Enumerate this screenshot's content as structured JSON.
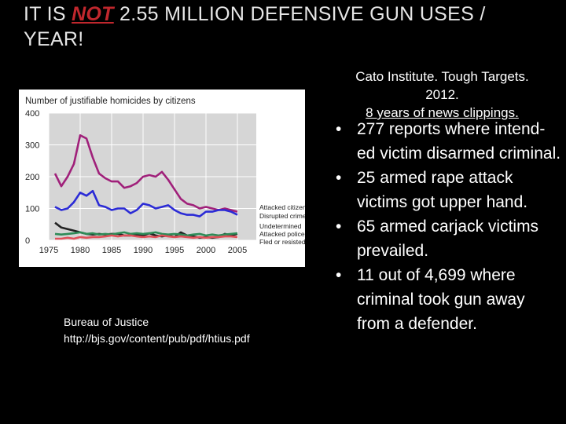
{
  "title": {
    "prefix": "IT IS ",
    "emphasis": "NOT",
    "suffix": " 2.55 MILLION DEFENSIVE GUN USES / YEAR!"
  },
  "left_source": {
    "line1": "Bureau of Justice",
    "line2": "http://bjs.gov/content/pub/pdf/htius.pdf"
  },
  "right_source": {
    "line1": "Cato Institute. Tough Targets.",
    "line2": "2012.",
    "line3": "8 years of news clippings."
  },
  "bullets": [
    {
      "symbol": "•",
      "text": "277 reports where intend-ed victim disarmed criminal."
    },
    {
      "symbol": "•",
      "text": "25 armed rape attack victims got upper hand."
    },
    {
      "symbol": "•",
      "text": "65 armed carjack victims prevailed."
    },
    {
      "symbol": "•",
      "text": "11 out of 4,699 where criminal took gun away from a defender."
    }
  ],
  "chart_data": {
    "type": "line",
    "title": "Number of justifiable homicides by citizens",
    "xlabel": "",
    "ylabel": "",
    "xlim": [
      1975,
      2008
    ],
    "ylim": [
      0,
      400
    ],
    "x_ticks": [
      1975,
      1980,
      1985,
      1990,
      1995,
      2000,
      2005
    ],
    "y_ticks": [
      0,
      100,
      200,
      300,
      400
    ],
    "grid": true,
    "legend": "right, labels beside line ends",
    "x": [
      1976,
      1977,
      1978,
      1979,
      1980,
      1981,
      1982,
      1983,
      1984,
      1985,
      1986,
      1987,
      1988,
      1989,
      1990,
      1991,
      1992,
      1993,
      1994,
      1995,
      1996,
      1997,
      1998,
      1999,
      2000,
      2001,
      2002,
      2003,
      2004,
      2005
    ],
    "series": [
      {
        "name": "Attacked citizen",
        "color": "#a0207a",
        "values": [
          210,
          170,
          200,
          240,
          330,
          320,
          260,
          210,
          195,
          185,
          185,
          165,
          170,
          180,
          200,
          205,
          200,
          215,
          190,
          160,
          130,
          115,
          110,
          100,
          105,
          100,
          95,
          100,
          95,
          90
        ]
      },
      {
        "name": "Disrupted crime",
        "color": "#2b2bd6",
        "values": [
          105,
          95,
          100,
          120,
          150,
          140,
          155,
          110,
          105,
          95,
          100,
          100,
          85,
          95,
          115,
          110,
          100,
          105,
          110,
          95,
          85,
          80,
          80,
          75,
          90,
          90,
          95,
          95,
          90,
          80
        ]
      },
      {
        "name": "Undetermined",
        "color": "#222222",
        "values": [
          55,
          40,
          35,
          30,
          25,
          20,
          18,
          20,
          18,
          20,
          20,
          15,
          15,
          18,
          15,
          22,
          15,
          12,
          15,
          10,
          25,
          15,
          12,
          8,
          10,
          8,
          10,
          20,
          15,
          20
        ]
      },
      {
        "name": "Attacked police",
        "color": "#2e8b57",
        "values": [
          20,
          18,
          20,
          22,
          25,
          20,
          22,
          18,
          20,
          18,
          22,
          25,
          20,
          22,
          20,
          22,
          25,
          20,
          18,
          20,
          18,
          15,
          18,
          20,
          15,
          18,
          15,
          18,
          20,
          22
        ]
      },
      {
        "name": "Fled or resisted",
        "color": "#e0505a",
        "values": [
          5,
          5,
          8,
          5,
          10,
          8,
          10,
          10,
          12,
          15,
          12,
          15,
          15,
          12,
          10,
          12,
          10,
          15,
          12,
          10,
          12,
          10,
          8,
          10,
          8,
          10,
          10,
          12,
          12,
          10
        ]
      }
    ]
  }
}
